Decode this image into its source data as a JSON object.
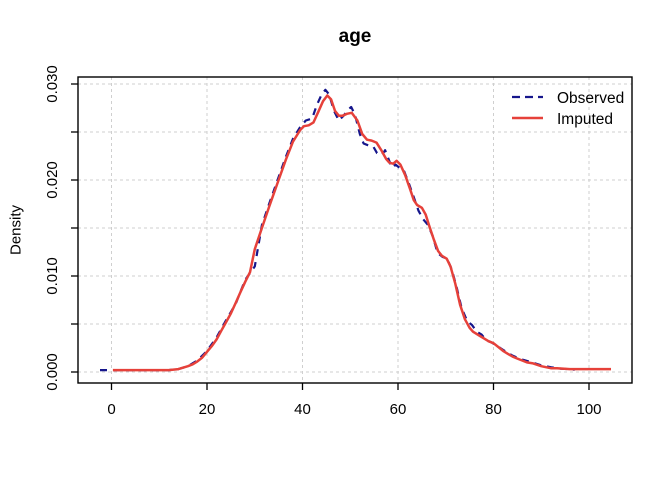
{
  "chart_data": {
    "type": "line",
    "title": "age",
    "xlabel": "",
    "ylabel": "Density",
    "xlim": [
      -7,
      109
    ],
    "ylim": [
      -0.00115,
      0.03073
    ],
    "grid": true,
    "grid_style": "dotted-gray",
    "x_ticks": [
      0,
      20,
      40,
      60,
      80,
      100
    ],
    "x_tick_labels": [
      "0",
      "20",
      "40",
      "60",
      "80",
      "100"
    ],
    "y_ticks": [
      0.0,
      0.005,
      0.01,
      0.015,
      0.02,
      0.025,
      0.03
    ],
    "y_tick_labels": [
      "0.000",
      null,
      "0.010",
      null,
      "0.020",
      null,
      "0.030"
    ],
    "legend": {
      "position": "top-right",
      "entries": [
        {
          "label": "Observed",
          "color": "#16168c",
          "style": "dashed"
        },
        {
          "label": "Imputed",
          "color": "#e6413a",
          "style": "solid"
        }
      ]
    },
    "series": [
      {
        "name": "Observed",
        "color": "#16168c",
        "dash": "7 6",
        "width": 2.2,
        "points": [
          [
            -2.4,
            0.0002
          ],
          [
            -1,
            0.0002
          ],
          [
            0,
            0.0002
          ],
          [
            4,
            0.0002
          ],
          [
            8,
            0.0002
          ],
          [
            12,
            0.0002
          ],
          [
            14,
            0.0003
          ],
          [
            16,
            0.0006
          ],
          [
            18,
            0.0012
          ],
          [
            20,
            0.0022
          ],
          [
            22,
            0.0036
          ],
          [
            24,
            0.0054
          ],
          [
            26,
            0.0071
          ],
          [
            28,
            0.0096
          ],
          [
            30,
            0.011
          ],
          [
            31.5,
            0.0153
          ],
          [
            33,
            0.0175
          ],
          [
            35,
            0.0203
          ],
          [
            36.5,
            0.0224
          ],
          [
            38,
            0.0243
          ],
          [
            39.5,
            0.0255
          ],
          [
            40.7,
            0.0262
          ],
          [
            42,
            0.0264
          ],
          [
            43,
            0.0278
          ],
          [
            44,
            0.0289
          ],
          [
            44.8,
            0.0294
          ],
          [
            45.6,
            0.0289
          ],
          [
            46.6,
            0.0272
          ],
          [
            47.6,
            0.0262
          ],
          [
            48.6,
            0.0267
          ],
          [
            49.5,
            0.0273
          ],
          [
            50.2,
            0.0276
          ],
          [
            51,
            0.0268
          ],
          [
            52,
            0.0248
          ],
          [
            52.8,
            0.0238
          ],
          [
            53.8,
            0.0236
          ],
          [
            54.8,
            0.0235
          ],
          [
            55.6,
            0.0228
          ],
          [
            56.6,
            0.0226
          ],
          [
            57.3,
            0.0231
          ],
          [
            58,
            0.0222
          ],
          [
            58.7,
            0.0213
          ],
          [
            59.5,
            0.0216
          ],
          [
            60.5,
            0.0212
          ],
          [
            61.3,
            0.0209
          ],
          [
            62.3,
            0.0196
          ],
          [
            63.3,
            0.0182
          ],
          [
            64.3,
            0.0168
          ],
          [
            65.3,
            0.0159
          ],
          [
            66.3,
            0.0153
          ],
          [
            67.3,
            0.0141
          ],
          [
            68.3,
            0.0124
          ],
          [
            69.3,
            0.012
          ],
          [
            70.3,
            0.0118
          ],
          [
            71.3,
            0.0106
          ],
          [
            72.3,
            0.0088
          ],
          [
            73.3,
            0.0067
          ],
          [
            74.5,
            0.0053
          ],
          [
            75.5,
            0.0049
          ],
          [
            76.5,
            0.0042
          ],
          [
            77.5,
            0.0039
          ],
          [
            78.5,
            0.0033
          ],
          [
            79.5,
            0.0031
          ],
          [
            80.5,
            0.0028
          ],
          [
            82,
            0.0023
          ],
          [
            84,
            0.0017
          ],
          [
            86,
            0.0013
          ],
          [
            88,
            0.001
          ],
          [
            90,
            0.0007
          ],
          [
            92,
            0.0005
          ],
          [
            94,
            0.00035
          ],
          [
            95.5,
            0.0003
          ],
          [
            97,
            0.00025
          ]
        ]
      },
      {
        "name": "Imputed",
        "color": "#e6413a",
        "dash": null,
        "width": 2.5,
        "points": [
          [
            0.3,
            0.0002
          ],
          [
            4,
            0.0002
          ],
          [
            8,
            0.0002
          ],
          [
            12,
            0.0002
          ],
          [
            14,
            0.0003
          ],
          [
            16,
            0.0006
          ],
          [
            17,
            0.0008
          ],
          [
            18,
            0.0011
          ],
          [
            19,
            0.0015
          ],
          [
            20,
            0.0021
          ],
          [
            21,
            0.0027
          ],
          [
            22,
            0.0034
          ],
          [
            23,
            0.0043
          ],
          [
            24,
            0.0052
          ],
          [
            25,
            0.0061
          ],
          [
            26,
            0.0072
          ],
          [
            27,
            0.0083
          ],
          [
            28,
            0.0094
          ],
          [
            29,
            0.0104
          ],
          [
            30,
            0.0128
          ],
          [
            31.5,
            0.015
          ],
          [
            33,
            0.0172
          ],
          [
            35,
            0.02
          ],
          [
            36.5,
            0.0221
          ],
          [
            38,
            0.024
          ],
          [
            39.5,
            0.0252
          ],
          [
            40.3,
            0.0256
          ],
          [
            41.3,
            0.0257
          ],
          [
            42.3,
            0.026
          ],
          [
            43.3,
            0.0271
          ],
          [
            44.3,
            0.0282
          ],
          [
            45.2,
            0.0288
          ],
          [
            46,
            0.0284
          ],
          [
            46.8,
            0.0272
          ],
          [
            47.6,
            0.0267
          ],
          [
            48.4,
            0.0267
          ],
          [
            49.3,
            0.0269
          ],
          [
            50.3,
            0.027
          ],
          [
            51.5,
            0.0262
          ],
          [
            52.5,
            0.0248
          ],
          [
            53.5,
            0.0242
          ],
          [
            54.5,
            0.0241
          ],
          [
            55.5,
            0.0239
          ],
          [
            56.5,
            0.0231
          ],
          [
            57.5,
            0.0222
          ],
          [
            58.2,
            0.0218
          ],
          [
            59,
            0.0217
          ],
          [
            59.7,
            0.022
          ],
          [
            60.5,
            0.0216
          ],
          [
            61.5,
            0.0205
          ],
          [
            62.5,
            0.0191
          ],
          [
            63.3,
            0.0179
          ],
          [
            64,
            0.0174
          ],
          [
            65,
            0.0171
          ],
          [
            65.8,
            0.0164
          ],
          [
            66.5,
            0.0153
          ],
          [
            67.5,
            0.0138
          ],
          [
            68.4,
            0.0126
          ],
          [
            69.2,
            0.0121
          ],
          [
            70.2,
            0.0118
          ],
          [
            71,
            0.011
          ],
          [
            72,
            0.0092
          ],
          [
            73,
            0.007
          ],
          [
            74,
            0.0055
          ],
          [
            75,
            0.0046
          ],
          [
            75.7,
            0.0042
          ],
          [
            77,
            0.0038
          ],
          [
            78,
            0.0035
          ],
          [
            79,
            0.0032
          ],
          [
            80,
            0.003
          ],
          [
            81,
            0.0026
          ],
          [
            82,
            0.0022
          ],
          [
            83,
            0.0019
          ],
          [
            84,
            0.0016
          ],
          [
            85,
            0.0014
          ],
          [
            86,
            0.0012
          ],
          [
            87,
            0.001
          ],
          [
            88.3,
            0.0009
          ],
          [
            90,
            0.0006
          ],
          [
            92,
            0.0004
          ],
          [
            93.3,
            0.0004
          ],
          [
            96,
            0.0003
          ],
          [
            100,
            0.0003
          ],
          [
            104.6,
            0.0003
          ]
        ]
      }
    ]
  }
}
